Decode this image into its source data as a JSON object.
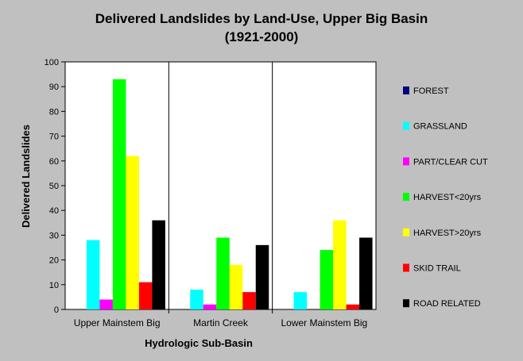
{
  "chart_data": {
    "type": "bar",
    "title": "Delivered Landslides by Land-Use, Upper Big Basin",
    "subtitle": "(1921-2000)",
    "xlabel": "Hydrologic Sub-Basin",
    "ylabel": "Delivered Landslides",
    "ylim": [
      0,
      100
    ],
    "yticks": [
      0,
      10,
      20,
      30,
      40,
      50,
      60,
      70,
      80,
      90,
      100
    ],
    "grid": false,
    "legend_position": "right",
    "categories": [
      "Upper Mainstem Big",
      "Martin Creek",
      "Lower Mainstem Big"
    ],
    "series": [
      {
        "name": "FOREST",
        "color": "#000080",
        "values": [
          0,
          0,
          0
        ]
      },
      {
        "name": "GRASSLAND",
        "color": "#00ffff",
        "values": [
          28,
          8,
          7
        ]
      },
      {
        "name": "PART/CLEAR CUT",
        "color": "#ff00ff",
        "values": [
          4,
          2,
          0
        ]
      },
      {
        "name": "HARVEST<20yrs",
        "color": "#00ff00",
        "values": [
          93,
          29,
          24
        ]
      },
      {
        "name": "HARVEST>20yrs",
        "color": "#ffff00",
        "values": [
          62,
          18,
          36
        ]
      },
      {
        "name": "SKID TRAIL",
        "color": "#ff0000",
        "values": [
          11,
          7,
          2
        ]
      },
      {
        "name": "ROAD RELATED",
        "color": "#000000",
        "values": [
          36,
          26,
          29
        ]
      }
    ],
    "plot_background": "#ffffff",
    "page_background": "#c0c0c0"
  }
}
